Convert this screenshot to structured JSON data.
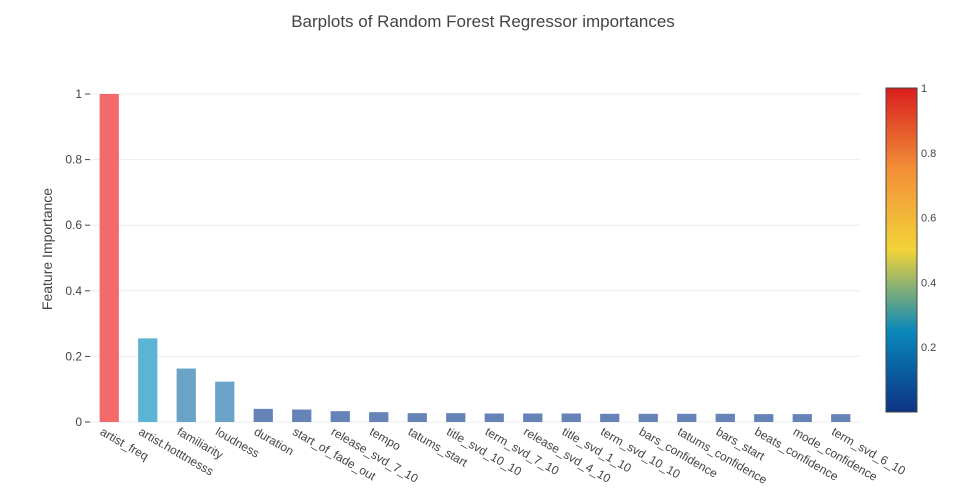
{
  "chart_data": {
    "type": "bar",
    "title": "Barplots of Random Forest Regressor importances",
    "xlabel": "",
    "ylabel": "Feature Importance",
    "ylim": [
      0,
      1
    ],
    "yticks": [
      0,
      0.2,
      0.4,
      0.6,
      0.8,
      1
    ],
    "ytick_labels": [
      "0",
      "0.2",
      "0.4",
      "0.6",
      "0.8",
      "1"
    ],
    "grid": true,
    "categories": [
      "artist_freq",
      "artist.hotttnesss",
      "familiarity",
      "loudness",
      "duration",
      "start_of_fade_out",
      "release_svd_7_10",
      "tempo",
      "tatums_start",
      "title_svd_10_10",
      "term_svd_7_10",
      "release_svd_4_10",
      "title_svd_1_10",
      "term_svd_10_10",
      "bars_confidence",
      "tatums_confidence",
      "bars_start",
      "beats_confidence",
      "mode_confidence",
      "term_svd_6_10"
    ],
    "values": [
      1.0,
      0.255,
      0.163,
      0.123,
      0.04,
      0.038,
      0.033,
      0.03,
      0.027,
      0.027,
      0.026,
      0.026,
      0.026,
      0.025,
      0.025,
      0.025,
      0.025,
      0.024,
      0.024,
      0.024
    ],
    "colorscale": {
      "name": "Portland",
      "range": [
        0,
        1
      ],
      "tick_values": [
        0.2,
        0.4,
        0.6,
        0.8,
        1
      ],
      "tick_labels": [
        "0.2",
        "0.4",
        "0.6",
        "0.8",
        "1"
      ],
      "stops": [
        [
          "0",
          "#0c3383"
        ],
        [
          "0.25",
          "#0a88ba"
        ],
        [
          "0.5",
          "#f2d338"
        ],
        [
          "0.75",
          "#f28f38"
        ],
        [
          "1",
          "#d91e1e"
        ]
      ]
    },
    "colors": {
      "bar_low": "#6683b8",
      "bar_mid": "#6aa3c8",
      "bar_hot": "#5bb4d4",
      "bar_top": "#f46a6a",
      "grid": "#eeeeee",
      "text": "#444444"
    }
  }
}
